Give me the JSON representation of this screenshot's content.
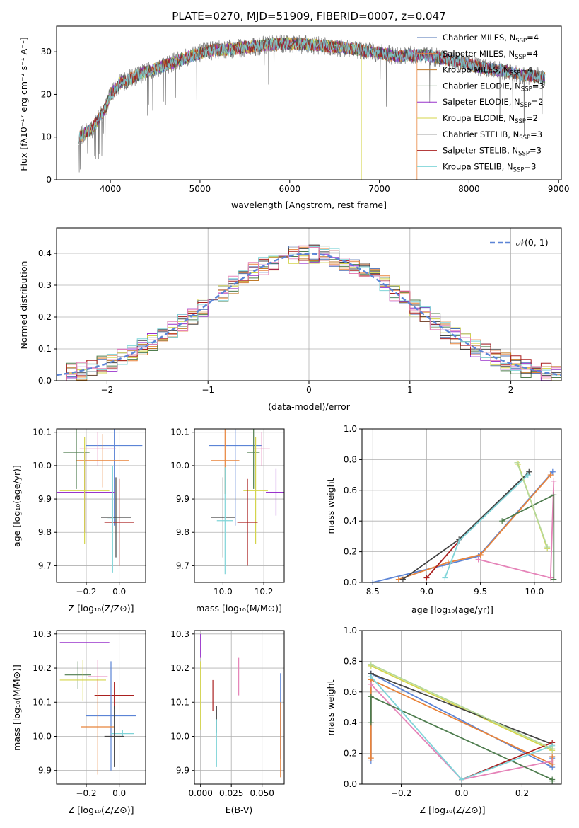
{
  "chart_data": [
    {
      "id": "spectrum",
      "type": "line",
      "title": "PLATE=0270, MJD=51909, FIBERID=0007, z=0.047",
      "xlabel": "wavelength [Angstrom, rest frame]",
      "ylabel": "Flux [fλ10⁻¹⁷ erg cm⁻² s⁻¹ A⁻¹]",
      "xlim": [
        3400,
        9030
      ],
      "ylim": [
        0,
        36
      ],
      "xticks": [
        "4000",
        "5000",
        "6000",
        "7000",
        "8000",
        "9000"
      ],
      "yticks": [
        "0",
        "10",
        "20",
        "30"
      ],
      "legend_position": "top-right",
      "data_range": [
        3650,
        8850
      ],
      "continuum": [
        [
          3650,
          10
        ],
        [
          3800,
          12
        ],
        [
          3950,
          17
        ],
        [
          4000,
          20
        ],
        [
          4100,
          22.5
        ],
        [
          4300,
          24.5
        ],
        [
          4500,
          26
        ],
        [
          4700,
          27.5
        ],
        [
          4900,
          29
        ],
        [
          5100,
          30.3
        ],
        [
          5300,
          30.5
        ],
        [
          5500,
          31
        ],
        [
          5800,
          31.7
        ],
        [
          6000,
          32
        ],
        [
          6300,
          31.5
        ],
        [
          6600,
          31
        ],
        [
          6900,
          30
        ],
        [
          7200,
          29
        ],
        [
          7500,
          29.3
        ],
        [
          7800,
          28
        ],
        [
          8000,
          27
        ],
        [
          8200,
          26
        ],
        [
          8400,
          25.5
        ],
        [
          8600,
          24.5
        ],
        [
          8850,
          24
        ]
      ],
      "dropouts": [
        {
          "series": "Kroupa ELODIE, N_SSP=2",
          "x": 6800
        },
        {
          "series": "Salpeter MILES, N_SSP=4",
          "x": 7420
        }
      ],
      "series": [
        {
          "name": "Chabrier MILES, N_SSP=4",
          "name_prefix": "Chabrier MILES, N",
          "sub": "SSP",
          "suffix": "=4",
          "color": "#4a6fb3",
          "width": 1
        },
        {
          "name": "Salpeter MILES, N_SSP=4",
          "name_prefix": "Salpeter MILES, N",
          "sub": "SSP",
          "suffix": "=4",
          "color": "#e8833a",
          "width": 1
        },
        {
          "name": "Kroupa MILES, N_SSP=4",
          "name_prefix": "Kroupa MILES, N",
          "sub": "SSP",
          "suffix": "=4",
          "color": "#c07a28",
          "width": 1
        },
        {
          "name": "Chabrier ELODIE, N_SSP=3",
          "name_prefix": "Chabrier ELODIE, N",
          "sub": "SSP",
          "suffix": "=3",
          "color": "#4e7c4e",
          "width": 1
        },
        {
          "name": "Salpeter ELODIE, N_SSP=2",
          "name_prefix": "Salpeter ELODIE, N",
          "sub": "SSP",
          "suffix": "=2",
          "color": "#9933cc",
          "width": 1
        },
        {
          "name": "Kroupa ELODIE, N_SSP=2",
          "name_prefix": "Kroupa ELODIE, N",
          "sub": "SSP",
          "suffix": "=2",
          "color": "#d4d44a",
          "width": 1
        },
        {
          "name": "Chabrier STELIB, N_SSP=3",
          "name_prefix": "Chabrier STELIB, N",
          "sub": "SSP",
          "suffix": "=3",
          "color": "#444444",
          "width": 1
        },
        {
          "name": "Salpeter STELIB, N_SSP=3",
          "name_prefix": "Salpeter STELIB, N",
          "sub": "SSP",
          "suffix": "=3",
          "color": "#aa2020",
          "width": 1
        },
        {
          "name": "Kroupa STELIB, N_SSP=3",
          "name_prefix": "Kroupa STELIB, N",
          "sub": "SSP",
          "suffix": "=3",
          "color": "#7fd4d8",
          "width": 1
        }
      ]
    },
    {
      "id": "residual_hist",
      "type": "line",
      "xlabel": "(data-model)/error",
      "ylabel": "Normed distribution",
      "xlim": [
        -2.5,
        2.5
      ],
      "ylim": [
        0,
        0.48
      ],
      "xticks": [
        "−2",
        "−1",
        "0",
        "1",
        "2"
      ],
      "yticks": [
        "0.0",
        "0.1",
        "0.2",
        "0.3",
        "0.4"
      ],
      "grid": true,
      "legend_position": "top-right",
      "bin_width": 0.1,
      "legend": {
        "label": "𝒩(0, 1)",
        "color": "#5b84d6"
      },
      "series_colors": [
        "#4a6fb3",
        "#e8833a",
        "#c07a28",
        "#4e7c4e",
        "#9933cc",
        "#d4d44a",
        "#444444",
        "#aa2020",
        "#7fd4d8",
        "#e583b8"
      ]
    },
    {
      "id": "age_vs_Z",
      "type": "scatter",
      "xlabel": "Z [log₁₀(Z/Z⊙)]",
      "ylabel": "age  [log₁₀(age/yr)]",
      "xlim": [
        -0.38,
        0.16
      ],
      "ylim": [
        9.65,
        10.11
      ],
      "xticks": [
        "−0.2",
        "0.0"
      ],
      "xtick_values": [
        -0.2,
        0.0
      ],
      "yticks": [
        "9.7",
        "9.8",
        "9.9",
        "10.0",
        "10.1"
      ],
      "ytick_values": [
        9.7,
        9.8,
        9.9,
        10.0,
        10.1
      ],
      "grid": true,
      "errorbars": [
        {
          "color": "#5b84d6",
          "x": -0.03,
          "y": 10.06,
          "xerr": 0.17,
          "yerr": 0.24
        },
        {
          "color": "#e583b8",
          "x": -0.13,
          "y": 10.05,
          "xerr": 0.11,
          "yerr": 0.05
        },
        {
          "color": "#e8833a",
          "x": -0.1,
          "y": 10.015,
          "xerr": 0.16,
          "yerr": 0.08
        },
        {
          "color": "#4e7c4e",
          "x": -0.26,
          "y": 10.04,
          "xerr": 0.08,
          "yerr": 0.11
        },
        {
          "color": "#9933cc",
          "x": -0.21,
          "y": 9.92,
          "xerr": 0.18,
          "yerr": 0.12
        },
        {
          "color": "#d4d44a",
          "x": -0.21,
          "y": 9.925,
          "xerr": 0.15,
          "yerr": 0.16
        },
        {
          "color": "#444444",
          "x": -0.02,
          "y": 9.845,
          "xerr": 0.09,
          "yerr": 0.12
        },
        {
          "color": "#aa2020",
          "x": 0.0,
          "y": 9.83,
          "xerr": 0.09,
          "yerr": 0.13
        },
        {
          "color": "#7fd4d8",
          "x": -0.04,
          "y": 9.84,
          "xerr": 0.03,
          "yerr": 0.16
        }
      ]
    },
    {
      "id": "age_vs_mass",
      "type": "scatter",
      "xlabel": "mass [log₁₀(M/M⊙)]",
      "ylabel": "",
      "xlim": [
        9.86,
        10.3
      ],
      "ylim": [
        9.65,
        10.11
      ],
      "xticks": [
        "10.0",
        "10.2"
      ],
      "xtick_values": [
        10.0,
        10.2
      ],
      "yticks": [
        "9.7",
        "9.8",
        "9.9",
        "10.0",
        "10.1"
      ],
      "ytick_values": [
        9.7,
        9.8,
        9.9,
        10.0,
        10.1
      ],
      "grid": true,
      "errorbars": [
        {
          "color": "#5b84d6",
          "x": 10.06,
          "y": 10.06,
          "xerr": 0.13,
          "yerr": 0.24
        },
        {
          "color": "#e583b8",
          "x": 10.19,
          "y": 10.05,
          "xerr": 0.04,
          "yerr": 0.05
        },
        {
          "color": "#e8833a",
          "x": 10.01,
          "y": 10.015,
          "xerr": 0.07,
          "yerr": 0.1
        },
        {
          "color": "#4e7c4e",
          "x": 10.15,
          "y": 10.04,
          "xerr": 0.03,
          "yerr": 0.11
        },
        {
          "color": "#9933cc",
          "x": 10.26,
          "y": 9.92,
          "xerr": 0.05,
          "yerr": 0.07
        },
        {
          "color": "#d4d44a",
          "x": 10.16,
          "y": 9.925,
          "xerr": 0.06,
          "yerr": 0.16
        },
        {
          "color": "#444444",
          "x": 10.0,
          "y": 9.845,
          "xerr": 0.06,
          "yerr": 0.12
        },
        {
          "color": "#aa2020",
          "x": 10.12,
          "y": 9.83,
          "xerr": 0.05,
          "yerr": 0.13
        },
        {
          "color": "#7fd4d8",
          "x": 10.01,
          "y": 9.835,
          "xerr": 0.04,
          "yerr": 0.16
        }
      ]
    },
    {
      "id": "massweight_vs_age",
      "type": "line",
      "xlabel": "age  [log₁₀(age/yr)]",
      "ylabel": "mass weight",
      "xlim": [
        8.4,
        10.25
      ],
      "ylim": [
        0,
        1
      ],
      "xticks": [
        "8.5",
        "9.0",
        "9.5",
        "10.0"
      ],
      "xtick_values": [
        8.5,
        9.0,
        9.5,
        10.0
      ],
      "yticks": [
        "0.0",
        "0.2",
        "0.4",
        "0.6",
        "0.8",
        "1.0"
      ],
      "ytick_values": [
        0,
        0.2,
        0.4,
        0.6,
        0.8,
        1.0
      ],
      "grid": true,
      "series": [
        {
          "color": "#5b84d6",
          "x": [
            8.5,
            9.15,
            9.48,
            10.17
          ],
          "y": [
            0.0,
            0.11,
            0.17,
            0.72
          ]
        },
        {
          "color": "#e8833a",
          "x": [
            8.74,
            9.2,
            9.5,
            10.15
          ],
          "y": [
            0.02,
            0.13,
            0.18,
            0.7
          ]
        },
        {
          "color": "#e583b8",
          "x": [
            9.48,
            10.15,
            10.18
          ],
          "y": [
            0.15,
            0.03,
            0.66
          ]
        },
        {
          "color": "#4e7c4e",
          "x": [
            9.7,
            10.18,
            10.18
          ],
          "y": [
            0.4,
            0.57,
            0.02
          ]
        },
        {
          "color": "#d4d44a",
          "x": [
            9.85,
            10.12
          ],
          "y": [
            0.77,
            0.22
          ]
        },
        {
          "color": "#444444",
          "x": [
            8.78,
            9.3,
            9.95
          ],
          "y": [
            0.02,
            0.28,
            0.72
          ]
        },
        {
          "color": "#aa2020",
          "x": [
            9.0,
            9.3
          ],
          "y": [
            0.03,
            0.27
          ]
        },
        {
          "color": "#7fd4d8",
          "x": [
            9.17,
            9.3,
            9.94
          ],
          "y": [
            0.03,
            0.27,
            0.7
          ]
        },
        {
          "color": "#b5d89a",
          "x": [
            9.84,
            10.12
          ],
          "y": [
            0.78,
            0.23
          ]
        }
      ]
    },
    {
      "id": "mass_vs_Z",
      "type": "scatter",
      "xlabel": "Z [log₁₀(Z/Z⊙)]",
      "ylabel": "mass [log₁₀(M/M⊙)]",
      "xlim": [
        -0.38,
        0.16
      ],
      "ylim": [
        9.86,
        10.31
      ],
      "xticks": [
        "−0.2",
        "0.0"
      ],
      "xtick_values": [
        -0.2,
        0.0
      ],
      "yticks": [
        "9.9",
        "10.0",
        "10.1",
        "10.2",
        "10.3"
      ],
      "ytick_values": [
        9.9,
        10.0,
        10.1,
        10.2,
        10.3
      ],
      "grid": true,
      "errorbars": [
        {
          "color": "#9933cc",
          "x": -0.21,
          "y": 10.275,
          "xerr": 0.15,
          "yerr": 0.0
        },
        {
          "color": "#4e7c4e",
          "x": -0.25,
          "y": 10.18,
          "xerr": 0.08,
          "yerr": 0.04
        },
        {
          "color": "#e583b8",
          "x": -0.13,
          "y": 10.175,
          "xerr": 0.06,
          "yerr": 0.05
        },
        {
          "color": "#d4d44a",
          "x": -0.22,
          "y": 10.165,
          "xerr": 0.14,
          "yerr": 0.06
        },
        {
          "color": "#aa2020",
          "x": -0.03,
          "y": 10.12,
          "xerr": 0.12,
          "yerr": 0.04
        },
        {
          "color": "#5b84d6",
          "x": -0.05,
          "y": 10.06,
          "xerr": 0.15,
          "yerr": 0.16
        },
        {
          "color": "#e8833a",
          "x": -0.13,
          "y": 10.028,
          "xerr": 0.1,
          "yerr": 0.14
        },
        {
          "color": "#7fd4d8",
          "x": 0.02,
          "y": 10.008,
          "xerr": 0.07,
          "yerr": 0.01
        },
        {
          "color": "#444444",
          "x": -0.03,
          "y": 10.0,
          "xerr": 0.06,
          "yerr": 0.09
        }
      ]
    },
    {
      "id": "mass_vs_EBV",
      "type": "scatter",
      "xlabel": "E(B-V)",
      "ylabel": "",
      "xlim": [
        -0.005,
        0.068
      ],
      "ylim": [
        9.86,
        10.31
      ],
      "xticks": [
        "0.000",
        "0.025",
        "0.050"
      ],
      "xtick_values": [
        0,
        0.025,
        0.05
      ],
      "yticks": [
        "9.9",
        "10.0",
        "10.1",
        "10.2",
        "10.3"
      ],
      "ytick_values": [
        9.9,
        10.0,
        10.1,
        10.2,
        10.3
      ],
      "grid": true,
      "errorbars": [
        {
          "color": "#9933cc",
          "x": 0.0,
          "y": 10.265,
          "xerr": 0,
          "yerr": 0.035
        },
        {
          "color": "#d4d44a",
          "x": 0.0,
          "y": 10.12,
          "xerr": 0,
          "yerr": 0.1
        },
        {
          "color": "#aa2020",
          "x": 0.01,
          "y": 10.12,
          "xerr": 0,
          "yerr": 0.045
        },
        {
          "color": "#444444",
          "x": 0.013,
          "y": 10.05,
          "xerr": 0,
          "yerr": 0.04
        },
        {
          "color": "#7fd4d8",
          "x": 0.013,
          "y": 9.98,
          "xerr": 0,
          "yerr": 0.07
        },
        {
          "color": "#e583b8",
          "x": 0.031,
          "y": 10.175,
          "xerr": 0,
          "yerr": 0.055
        },
        {
          "color": "#5b84d6",
          "x": 0.065,
          "y": 10.06,
          "xerr": 0,
          "yerr": 0.125
        },
        {
          "color": "#e8833a",
          "x": 0.065,
          "y": 9.99,
          "xerr": 0,
          "yerr": 0.11
        }
      ]
    },
    {
      "id": "massweight_vs_Z",
      "type": "line",
      "xlabel": "Z [log₁₀(Z/Z⊙)]",
      "ylabel": "mass weight",
      "xlim": [
        -0.33,
        0.33
      ],
      "ylim": [
        0,
        1
      ],
      "xticks": [
        "−0.2",
        "0.0",
        "0.2"
      ],
      "xtick_values": [
        -0.2,
        0.0,
        0.2
      ],
      "yticks": [
        "0.0",
        "0.2",
        "0.4",
        "0.6",
        "0.8",
        "1.0"
      ],
      "ytick_values": [
        0,
        0.2,
        0.4,
        0.6,
        0.8,
        1.0
      ],
      "grid": true,
      "series": [
        {
          "color": "#5b84d6",
          "x": [
            -0.3,
            -0.3,
            0.3,
            0.3
          ],
          "y": [
            0.15,
            0.72,
            0.11,
            0.17
          ]
        },
        {
          "color": "#e8833a",
          "x": [
            -0.3,
            -0.3,
            0.3,
            0.3
          ],
          "y": [
            0.17,
            0.68,
            0.13,
            0.18
          ]
        },
        {
          "color": "#e583b8",
          "x": [
            -0.3,
            0.0,
            0.3
          ],
          "y": [
            0.65,
            0.03,
            0.15
          ]
        },
        {
          "color": "#4e7c4e",
          "x": [
            -0.3,
            -0.3,
            0.3,
            0.3
          ],
          "y": [
            0.4,
            0.57,
            0.03,
            0.02
          ]
        },
        {
          "color": "#d4d44a",
          "x": [
            -0.3,
            0.3
          ],
          "y": [
            0.77,
            0.22
          ]
        },
        {
          "color": "#444444",
          "x": [
            -0.3,
            0.3
          ],
          "y": [
            0.72,
            0.26
          ]
        },
        {
          "color": "#aa2020",
          "x": [
            0.0,
            0.3
          ],
          "y": [
            0.03,
            0.27
          ]
        },
        {
          "color": "#7fd4d8",
          "x": [
            -0.3,
            0.0,
            0.3
          ],
          "y": [
            0.7,
            0.03,
            0.25
          ]
        },
        {
          "color": "#b5d89a",
          "x": [
            -0.3,
            0.3
          ],
          "y": [
            0.78,
            0.23
          ]
        }
      ]
    }
  ]
}
